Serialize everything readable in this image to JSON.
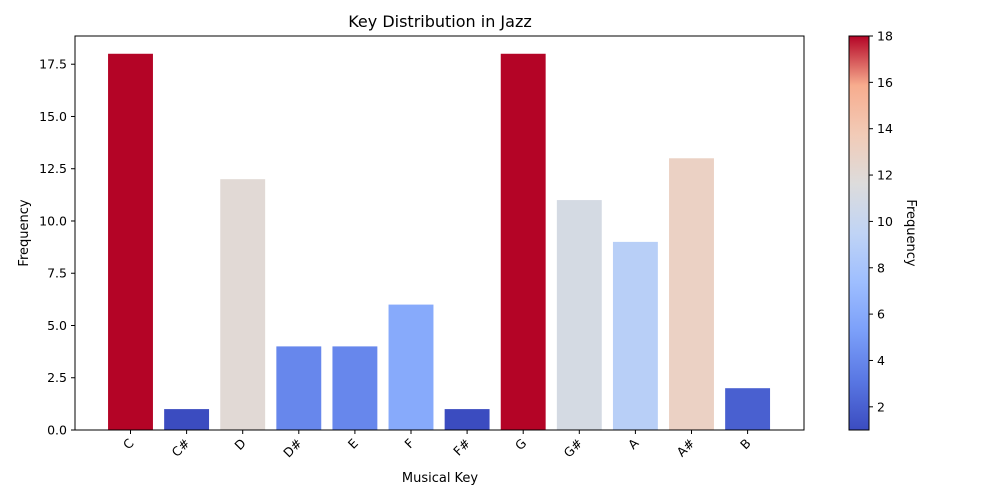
{
  "chart_data": {
    "type": "bar",
    "title": "Key Distribution in Jazz",
    "xlabel": "Musical Key",
    "ylabel": "Frequency",
    "categories": [
      "C",
      "C#",
      "D",
      "D#",
      "E",
      "F",
      "F#",
      "G",
      "G#",
      "A",
      "A#",
      "B"
    ],
    "values": [
      18,
      1,
      12,
      4,
      4,
      6,
      1,
      18,
      11,
      9,
      13,
      2
    ],
    "ylim": [
      0,
      18.85
    ],
    "yticks": [
      "0.0",
      "2.5",
      "5.0",
      "7.5",
      "10.0",
      "12.5",
      "15.0",
      "17.5"
    ],
    "grid": false,
    "colormap": "coolwarm",
    "colorbar": {
      "label": "Frequency",
      "range": [
        1,
        18
      ],
      "ticks": [
        "2",
        "4",
        "6",
        "8",
        "10",
        "12",
        "14",
        "16",
        "18"
      ]
    }
  }
}
